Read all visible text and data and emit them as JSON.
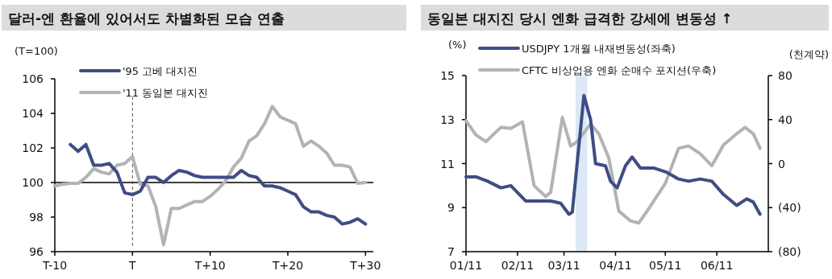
{
  "chart_data": [
    {
      "type": "line",
      "title": "달러-엔 환율에 있어서도 차별화된 모습 연출",
      "ylabel": "(T=100)",
      "categories": [
        "T-10",
        null,
        null,
        null,
        null,
        null,
        null,
        null,
        null,
        null,
        "T",
        null,
        null,
        null,
        null,
        null,
        null,
        null,
        null,
        null,
        "T+10",
        null,
        null,
        null,
        null,
        null,
        null,
        null,
        null,
        null,
        "T+20",
        null,
        null,
        null,
        null,
        null,
        null,
        null,
        null,
        null,
        "T+30"
      ],
      "ylim": [
        96,
        106
      ],
      "yticks": [
        96,
        98,
        100,
        102,
        104,
        106
      ],
      "legend": "top left",
      "ref_lines": [
        {
          "axis": "y",
          "value": 100,
          "color": "#000000",
          "line_style": "solid"
        },
        {
          "axis": "x",
          "value": "T",
          "color": "#555555",
          "line_style": "dashed"
        }
      ],
      "series": [
        {
          "name": "'95 고베 대지진",
          "color": "#3f4d84",
          "values": [
            null,
            null,
            102.2,
            101.8,
            102.2,
            101.0,
            101.0,
            101.1,
            100.6,
            99.4,
            99.3,
            99.5,
            100.3,
            100.3,
            100.0,
            100.4,
            100.7,
            100.6,
            100.4,
            100.3,
            100.3,
            100.3,
            100.3,
            100.3,
            100.7,
            100.4,
            100.3,
            99.8,
            99.8,
            99.7,
            99.5,
            99.3,
            98.6,
            98.3,
            98.3,
            98.1,
            98.0,
            97.6,
            97.7,
            97.9,
            97.6
          ]
        },
        {
          "name": "'11 동일본 대지진",
          "color": "#b3b3b3",
          "values": [
            99.8,
            99.9,
            99.95,
            99.95,
            100.3,
            100.8,
            100.6,
            100.5,
            101.0,
            101.1,
            101.5,
            99.9,
            99.8,
            98.6,
            96.4,
            98.5,
            98.5,
            98.7,
            98.9,
            98.9,
            99.2,
            99.6,
            100.1,
            100.9,
            101.4,
            102.4,
            102.7,
            103.4,
            104.4,
            103.8,
            103.6,
            103.4,
            102.1,
            102.4,
            102.1,
            101.7,
            101.0,
            101.0,
            100.9,
            99.95,
            100.0
          ]
        }
      ]
    },
    {
      "type": "line",
      "title": "동일본 대지진 당시 엔화 급격한 강세에 변동성 ↑",
      "ylabel": "(%)",
      "y2label": "(천계약)",
      "xlim": [
        "2011-01-01",
        "2011-07-02"
      ],
      "xticks": [
        {
          "value": "2011-01-01",
          "label": "01/11"
        },
        {
          "value": "2011-02-01",
          "label": "02/11"
        },
        {
          "value": "2011-03-01",
          "label": "03/11"
        },
        {
          "value": "2011-04-01",
          "label": "04/11"
        },
        {
          "value": "2011-05-01",
          "label": "05/11"
        },
        {
          "value": "2011-06-01",
          "label": "06/11"
        }
      ],
      "ylim": [
        7,
        15
      ],
      "yticks": [
        7,
        9,
        11,
        13,
        15
      ],
      "y2lim": [
        -80,
        80
      ],
      "y2ticks": [
        {
          "value": -80,
          "label": "(80)"
        },
        {
          "value": -40,
          "label": "(40)"
        },
        0,
        40,
        80
      ],
      "legend": "top left",
      "bands": [
        {
          "axis": "x",
          "from": "2011-03-08",
          "to": "2011-03-15",
          "color": "#dce8f6"
        }
      ],
      "series": [
        {
          "name": "USDJPY 1개월 내재변동성(좌축)",
          "color": "#3f4d84",
          "x": [
            "2011-01-01",
            "2011-01-07",
            "2011-01-14",
            "2011-01-22",
            "2011-01-28",
            "2011-02-06",
            "2011-02-14",
            "2011-02-21",
            "2011-02-27",
            "2011-03-02",
            "2011-03-04",
            "2011-03-06",
            "2011-03-13",
            "2011-03-17",
            "2011-03-20",
            "2011-03-26",
            "2011-03-29",
            "2011-04-02",
            "2011-04-07",
            "2011-04-11",
            "2011-04-16",
            "2011-04-24",
            "2011-05-02",
            "2011-05-09",
            "2011-05-15",
            "2011-05-22",
            "2011-05-29",
            "2011-06-05",
            "2011-06-13",
            "2011-06-19",
            "2011-06-23",
            "2011-06-27"
          ],
          "values": [
            10.4,
            10.4,
            10.2,
            9.9,
            10.0,
            9.3,
            9.3,
            9.3,
            9.2,
            8.9,
            8.7,
            8.8,
            14.1,
            13.0,
            11.0,
            10.9,
            10.2,
            9.9,
            10.9,
            11.3,
            10.8,
            10.8,
            10.6,
            10.3,
            10.2,
            10.3,
            10.2,
            9.6,
            9.1,
            9.4,
            9.25,
            8.7
          ]
        },
        {
          "name": "CFTC 비상업용 엔화 순매수 포지션(우축)",
          "color": "#b3b3b3",
          "axis": "y2",
          "x": [
            "2011-01-01",
            "2011-01-07",
            "2011-01-13",
            "2011-01-22",
            "2011-01-28",
            "2011-02-04",
            "2011-02-11",
            "2011-02-18",
            "2011-02-21",
            "2011-02-28",
            "2011-03-05",
            "2011-03-09",
            "2011-03-17",
            "2011-03-22",
            "2011-03-28",
            "2011-04-03",
            "2011-04-10",
            "2011-04-15",
            "2011-04-21",
            "2011-05-01",
            "2011-05-09",
            "2011-05-15",
            "2011-05-22",
            "2011-05-29",
            "2011-06-05",
            "2011-06-12",
            "2011-06-18",
            "2011-06-23",
            "2011-06-27"
          ],
          "values": [
            39,
            26,
            20,
            33,
            32,
            38,
            -20,
            -30,
            -26,
            42,
            16,
            20,
            36,
            27,
            5,
            -43,
            -52,
            -54,
            -41,
            -18,
            14,
            16,
            9,
            -2,
            17,
            26,
            33,
            27,
            14
          ]
        }
      ]
    }
  ]
}
